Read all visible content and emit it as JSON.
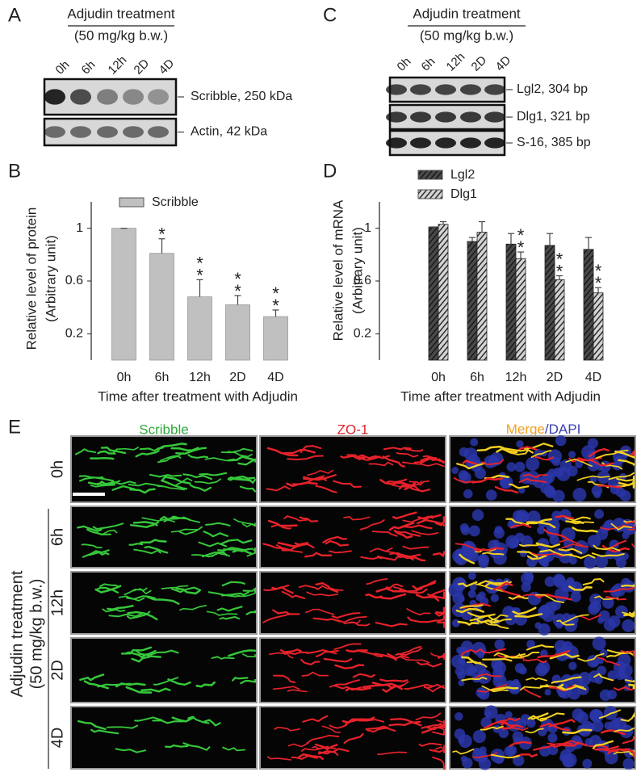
{
  "blot_a": {
    "label": "A",
    "treatment": "Adjudin treatment",
    "dose": "(50 mg/kg b.w.)",
    "lanes": [
      "0h",
      "6h",
      "12h",
      "2D",
      "4D"
    ],
    "bands": [
      "Scribble, 250 kDa",
      "Actin, 42 kDa"
    ]
  },
  "blot_c": {
    "label": "C",
    "treatment": "Adjudin treatment",
    "dose": "(50 mg/kg b.w.)",
    "lanes": [
      "0h",
      "6h",
      "12h",
      "2D",
      "4D"
    ],
    "bands": [
      "Lgl2, 304 bp",
      "Dlg1, 321 bp",
      "S-16, 385 bp"
    ]
  },
  "chart_data": [
    {
      "type": "bar",
      "label": "B",
      "ylabel": [
        "Relative level of protein",
        "(Arbitrary unit)"
      ],
      "xlabel": "Time after treatment with Adjudin",
      "categories": [
        "0h",
        "6h",
        "12h",
        "2D",
        "4D"
      ],
      "series": [
        {
          "name": "Scribble",
          "color": "#c0c0c0",
          "hatch": false,
          "values": [
            1.0,
            0.81,
            0.48,
            0.42,
            0.33
          ],
          "errors": [
            0,
            0.11,
            0.13,
            0.07,
            0.05
          ],
          "significance": [
            null,
            "*",
            "**",
            "**",
            "**"
          ]
        }
      ],
      "ylim": [
        0,
        1.2
      ],
      "yticks": [
        0.2,
        0.6,
        1.0
      ],
      "legend": "top"
    },
    {
      "type": "bar",
      "label": "D",
      "ylabel": [
        "Relative level of mRNA",
        "(Arbitrary unit)"
      ],
      "xlabel": "Time after treatment with Adjudin",
      "categories": [
        "0h",
        "6h",
        "12h",
        "2D",
        "4D"
      ],
      "series": [
        {
          "name": "Lgl2",
          "color": "#4a4a4a",
          "hatch": true,
          "values": [
            1.01,
            0.9,
            0.88,
            0.87,
            0.84
          ],
          "errors": [
            0,
            0.03,
            0.08,
            0.09,
            0.09
          ],
          "significance": [
            null,
            null,
            null,
            null,
            null
          ]
        },
        {
          "name": "Dlg1",
          "color": "#d4d4d4",
          "hatch": true,
          "values": [
            1.03,
            0.97,
            0.77,
            0.61,
            0.51
          ],
          "errors": [
            0.02,
            0.08,
            0.05,
            0.03,
            0.04
          ],
          "significance": [
            null,
            null,
            "**",
            "**",
            "**"
          ]
        }
      ],
      "ylim": [
        0,
        1.2
      ],
      "yticks": [
        0.2,
        0.6,
        1.0
      ],
      "legend": "top"
    }
  ],
  "micrographs": {
    "label": "E",
    "columns": [
      "Scribble",
      "ZO-1"
    ],
    "merge": [
      "Merge",
      "/DAPI"
    ],
    "rows": [
      "0h",
      "6h",
      "12h",
      "2D",
      "4D"
    ],
    "side_label": [
      "Adjudin treatment",
      "(50 mg/kg b.w.)"
    ]
  }
}
